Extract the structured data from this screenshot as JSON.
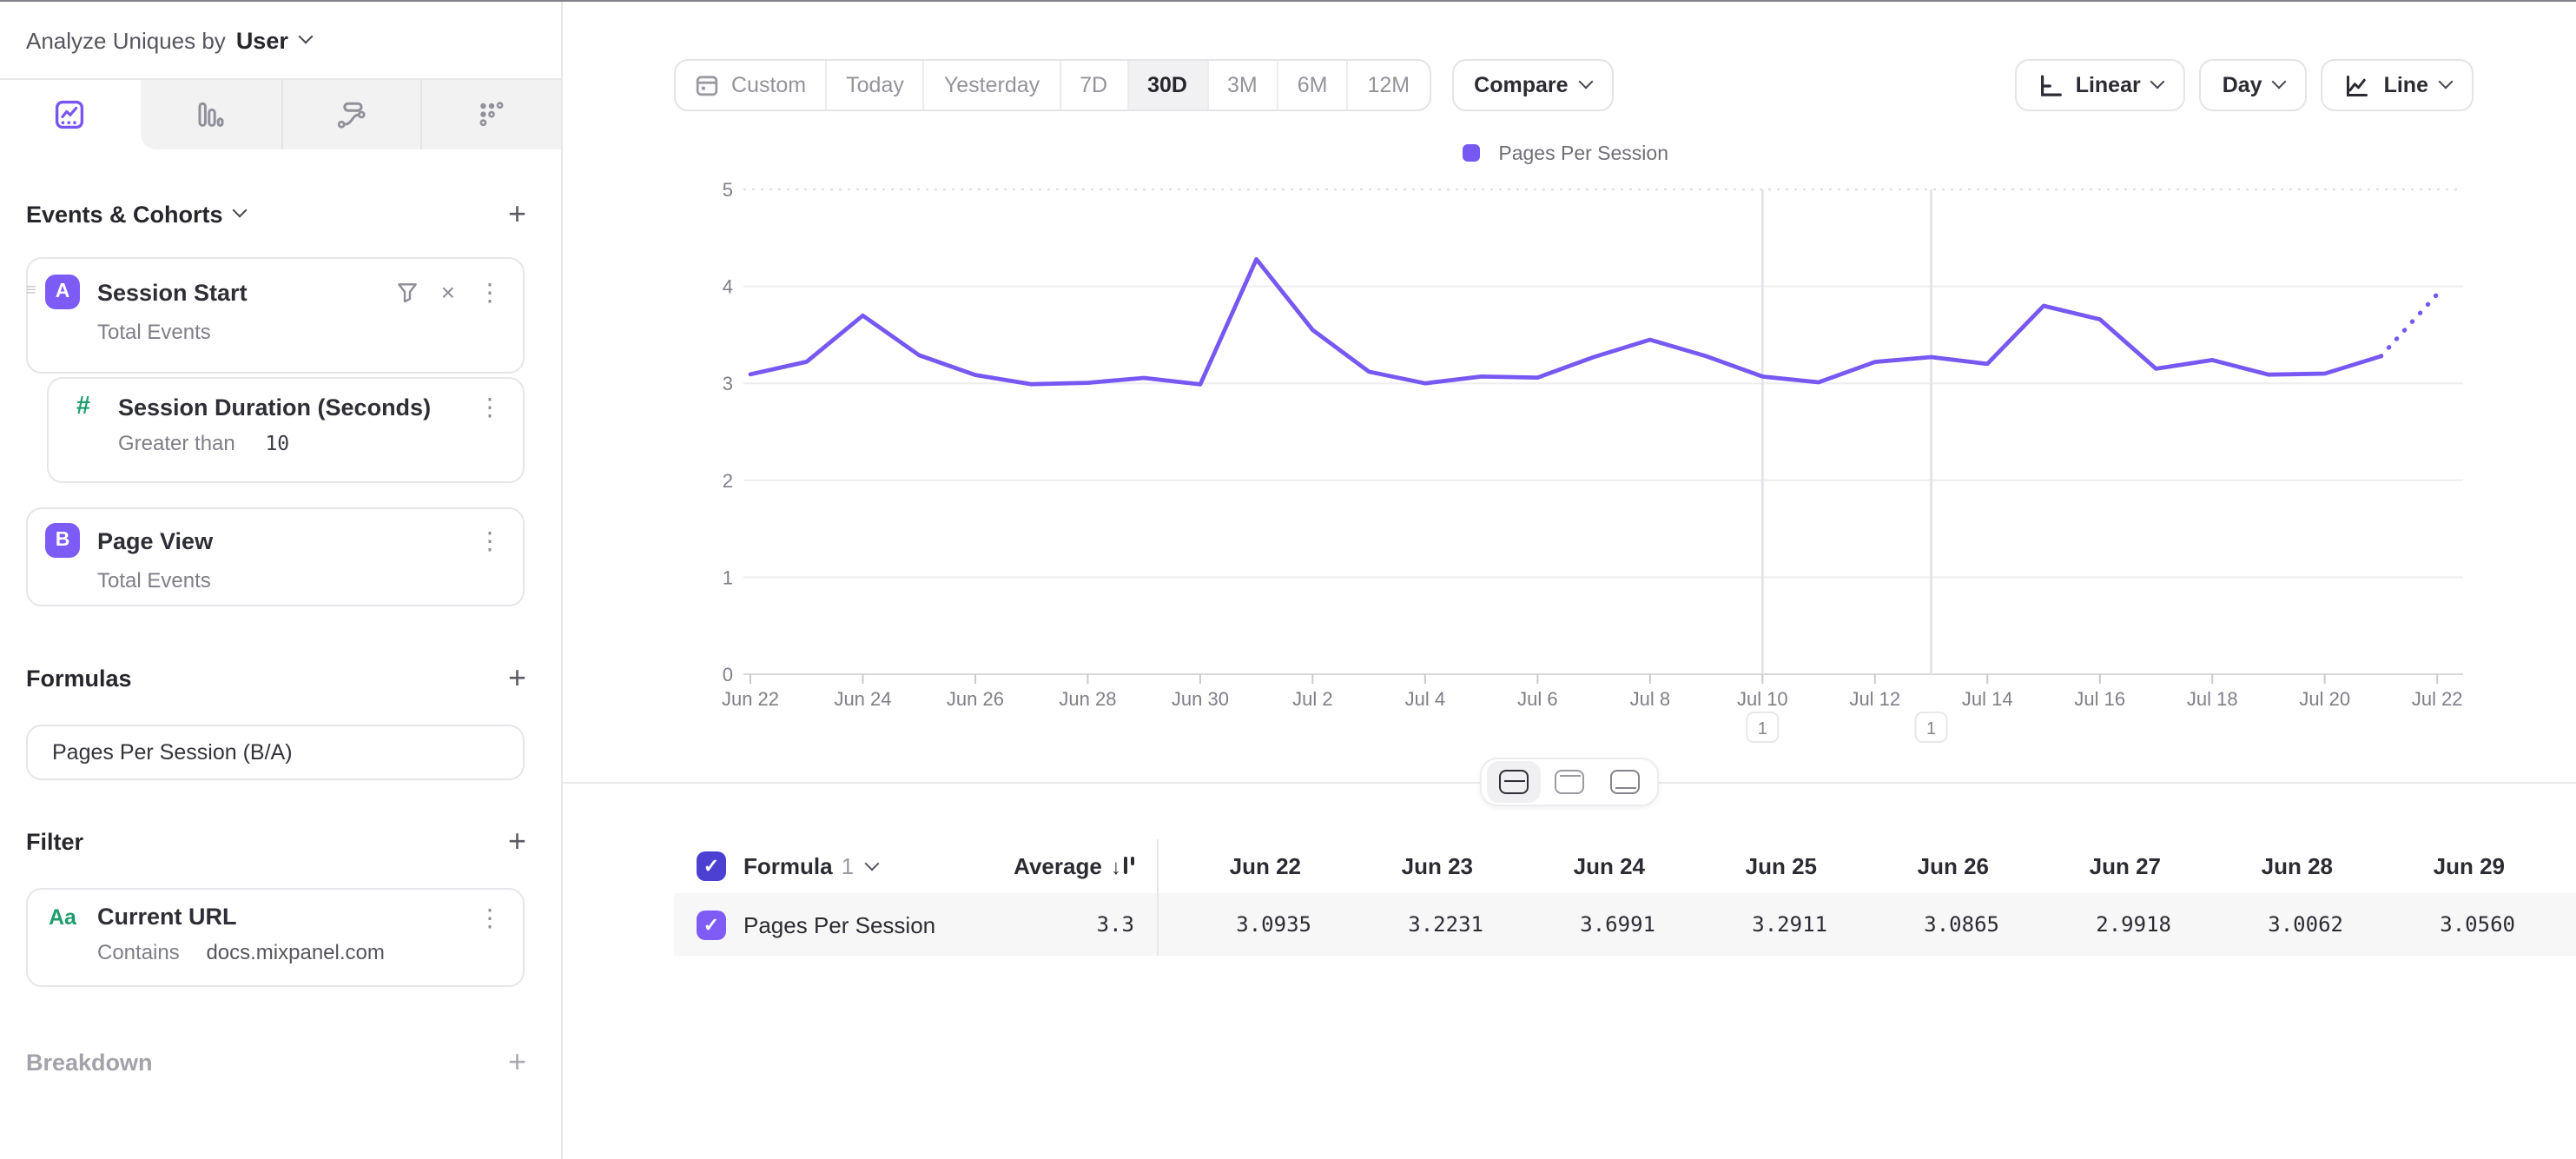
{
  "header": {
    "analyze_label": "Analyze Uniques by",
    "analyze_value": "User"
  },
  "sidebar": {
    "tabs": [
      {
        "name": "insights-line-tab",
        "selected": true
      },
      {
        "name": "bar-tab",
        "selected": false
      },
      {
        "name": "flows-tab",
        "selected": false
      },
      {
        "name": "scatter-tab",
        "selected": false
      }
    ],
    "events_section_label": "Events & Cohorts",
    "events": [
      {
        "badge": "A",
        "name": "Session Start",
        "detail": "Total Events"
      },
      {
        "badge": "#",
        "name": "Session Duration (Seconds)",
        "detail_label": "Greater than",
        "detail_value": "10"
      },
      {
        "badge": "B",
        "name": "Page View",
        "detail": "Total Events"
      }
    ],
    "formulas_label": "Formulas",
    "formula": "Pages Per Session (B/A)",
    "filter_label": "Filter",
    "filter": {
      "badge": "Aa",
      "name": "Current URL",
      "op": "Contains",
      "value": "docs.mixpanel.com"
    },
    "breakdown_label": "Breakdown"
  },
  "toolbar": {
    "ranges": [
      "Custom",
      "Today",
      "Yesterday",
      "7D",
      "30D",
      "3M",
      "6M",
      "12M"
    ],
    "selected_range": "30D",
    "compare_label": "Compare",
    "scale_label": "Linear",
    "interval_label": "Day",
    "chart_type_label": "Line"
  },
  "chart_data": {
    "type": "line",
    "title": "",
    "x": [
      "Jun 22",
      "Jun 23",
      "Jun 24",
      "Jun 25",
      "Jun 26",
      "Jun 27",
      "Jun 28",
      "Jun 29",
      "Jun 30",
      "Jul 1",
      "Jul 2",
      "Jul 3",
      "Jul 4",
      "Jul 5",
      "Jul 6",
      "Jul 7",
      "Jul 8",
      "Jul 9",
      "Jul 10",
      "Jul 11",
      "Jul 12",
      "Jul 13",
      "Jul 14",
      "Jul 15",
      "Jul 16",
      "Jul 17",
      "Jul 18",
      "Jul 19",
      "Jul 20",
      "Jul 21",
      "Jul 22"
    ],
    "series": [
      {
        "name": "Pages Per Session",
        "color": "#7758f2",
        "values": [
          3.0935,
          3.2231,
          3.6991,
          3.2911,
          3.0865,
          2.9918,
          3.0062,
          3.056,
          2.99,
          4.28,
          3.55,
          3.12,
          3.0,
          3.07,
          3.06,
          3.27,
          3.45,
          3.28,
          3.07,
          3.01,
          3.22,
          3.27,
          3.2,
          3.8,
          3.66,
          3.15,
          3.24,
          3.09,
          3.1,
          3.28,
          3.92
        ]
      }
    ],
    "dashed_from_index": 29,
    "ylim": [
      0,
      5
    ],
    "yticks": [
      0,
      1,
      2,
      3,
      4,
      5
    ],
    "x_label_every": 2,
    "grid": true,
    "legend_position": "top-center",
    "annotations": [
      {
        "x": "Jul 10",
        "index": 18,
        "label": "1"
      },
      {
        "x": "Jul 13",
        "index": 21,
        "label": "1"
      }
    ]
  },
  "table": {
    "group_label": "Formula",
    "group_number": "1",
    "avg_label": "Average",
    "row_label": "Pages Per Session",
    "avg_value": "3.3",
    "columns": [
      {
        "date": "Jun 22",
        "value": "3.0935"
      },
      {
        "date": "Jun 23",
        "value": "3.2231"
      },
      {
        "date": "Jun 24",
        "value": "3.6991"
      },
      {
        "date": "Jun 25",
        "value": "3.2911"
      },
      {
        "date": "Jun 26",
        "value": "3.0865"
      },
      {
        "date": "Jun 27",
        "value": "2.9918"
      },
      {
        "date": "Jun 28",
        "value": "3.0062"
      },
      {
        "date": "Jun 29",
        "value": "3.0560"
      }
    ]
  }
}
